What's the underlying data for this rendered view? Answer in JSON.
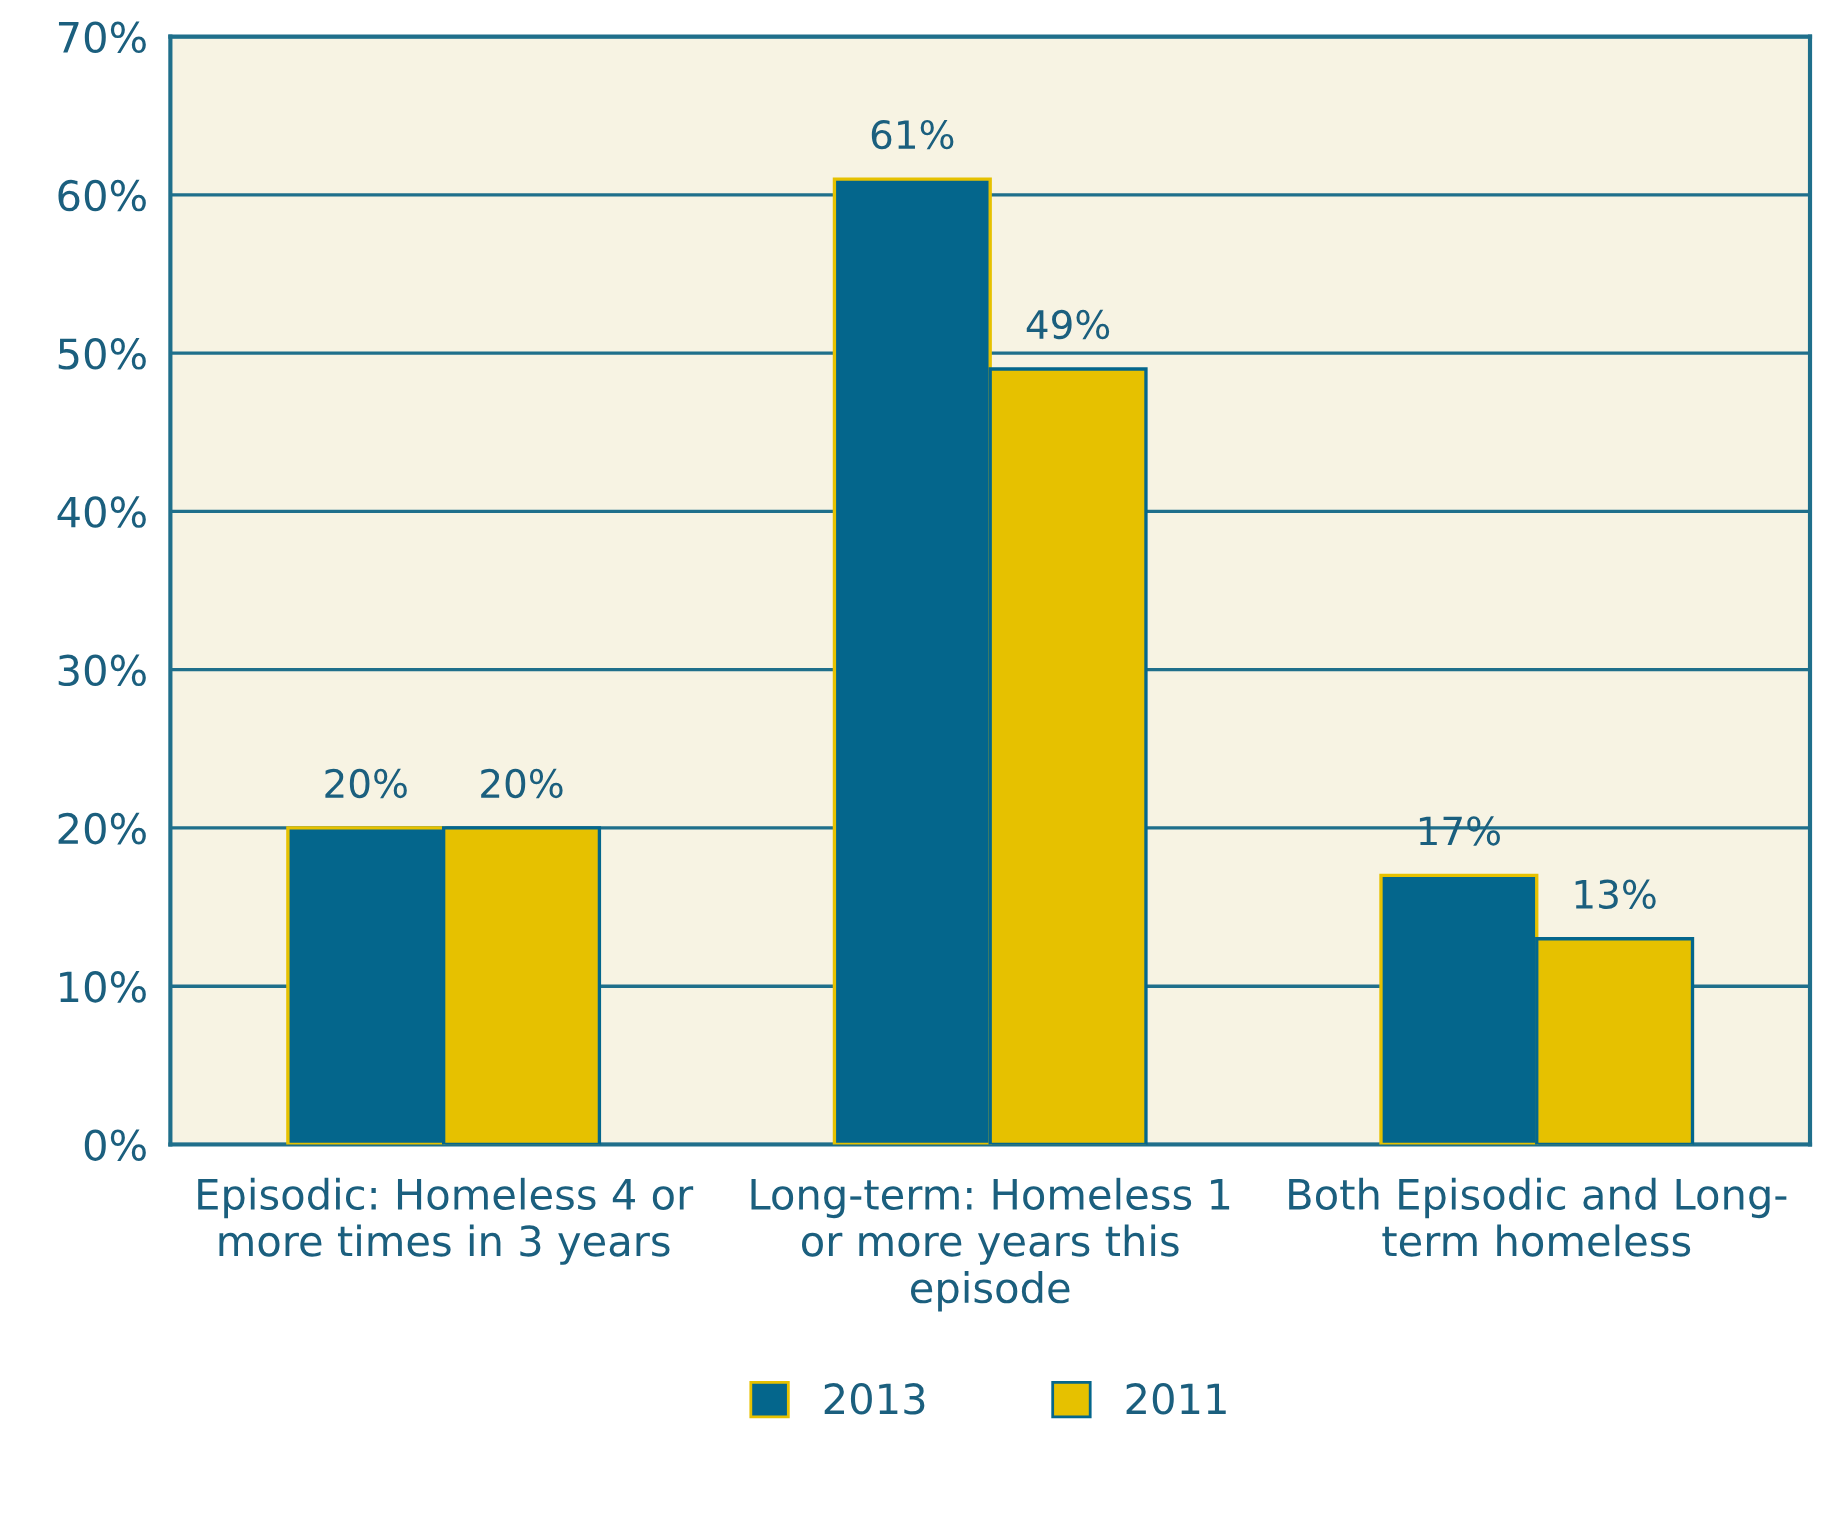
{
  "chart_data": {
    "type": "bar",
    "categories": [
      "Episodic: Homeless 4 or\nmore times in 3 years",
      "Long-term: Homeless 1\nor more years this\nepisode",
      "Both Episodic and Long-\nterm homeless"
    ],
    "series": [
      {
        "name": "2013",
        "color": "#04668c",
        "values": [
          20,
          61,
          17
        ],
        "value_labels": [
          "20%",
          "61%",
          "17%"
        ]
      },
      {
        "name": "2011",
        "color": "#e6c100",
        "values": [
          20,
          49,
          13
        ],
        "value_labels": [
          "20%",
          "49%",
          "13%"
        ]
      }
    ],
    "ylim": [
      0,
      70
    ],
    "yticks": [
      {
        "value": 0,
        "label": "0%"
      },
      {
        "value": 10,
        "label": "10%"
      },
      {
        "value": 20,
        "label": "20%"
      },
      {
        "value": 30,
        "label": "30%"
      },
      {
        "value": 40,
        "label": "40%"
      },
      {
        "value": 50,
        "label": "50%"
      },
      {
        "value": 60,
        "label": "60%"
      },
      {
        "value": 70,
        "label": "70%"
      }
    ],
    "grid": "y",
    "legend": "bottom"
  }
}
